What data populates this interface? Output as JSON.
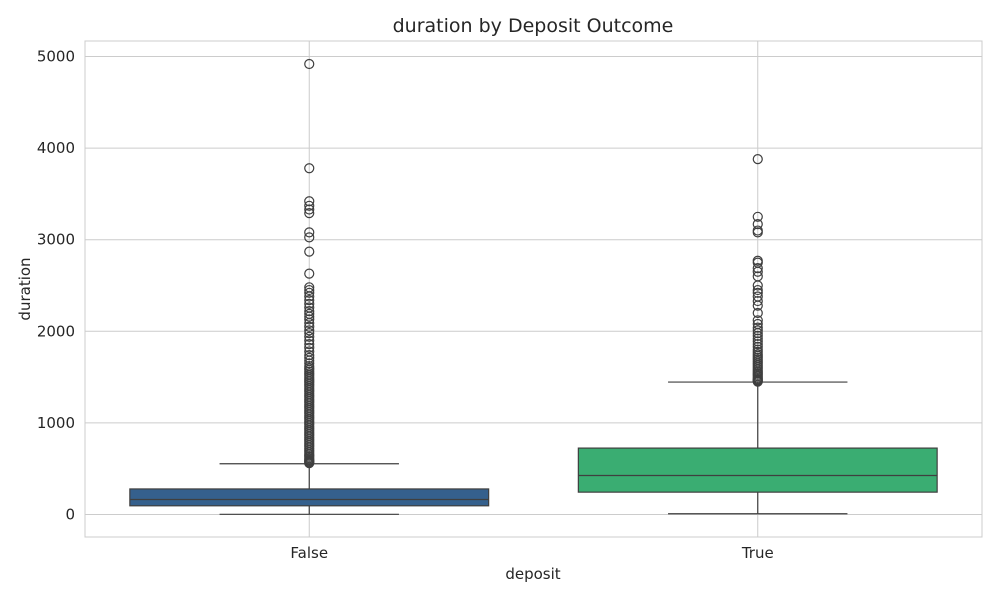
{
  "chart_data": {
    "type": "boxplot",
    "title": "duration by Deposit Outcome",
    "xlabel": "deposit",
    "ylabel": "duration",
    "categories": [
      "False",
      "True"
    ],
    "ylim": [
      -250,
      5160
    ],
    "yticks": [
      0,
      1000,
      2000,
      3000,
      4000,
      5000
    ],
    "grid": true,
    "boxes": [
      {
        "category": "False",
        "color": "#35608d",
        "whisker_low": 2,
        "q1": 95,
        "median": 164,
        "q3": 279,
        "whisker_high": 554,
        "outliers": [
          560,
          570,
          580,
          590,
          600,
          615,
          630,
          645,
          660,
          680,
          700,
          720,
          740,
          760,
          780,
          800,
          820,
          840,
          860,
          880,
          900,
          920,
          940,
          960,
          980,
          1000,
          1020,
          1040,
          1060,
          1080,
          1100,
          1120,
          1140,
          1160,
          1180,
          1200,
          1220,
          1240,
          1260,
          1280,
          1300,
          1320,
          1340,
          1360,
          1380,
          1400,
          1420,
          1440,
          1460,
          1480,
          1500,
          1520,
          1540,
          1560,
          1580,
          1600,
          1620,
          1650,
          1680,
          1710,
          1740,
          1780,
          1820,
          1860,
          1900,
          1940,
          1980,
          2010,
          2050,
          2090,
          2130,
          2160,
          2190,
          2220,
          2260,
          2300,
          2340,
          2380,
          2420,
          2450,
          2480,
          2630,
          2870,
          3025,
          3080,
          3290,
          3330,
          3370,
          3420,
          3780,
          4918
        ]
      },
      {
        "category": "True",
        "color": "#3aad72",
        "whisker_low": 8,
        "q1": 244,
        "median": 426,
        "q3": 725,
        "whisker_high": 1446,
        "outliers": [
          1450,
          1460,
          1470,
          1480,
          1495,
          1510,
          1525,
          1540,
          1555,
          1570,
          1590,
          1610,
          1630,
          1650,
          1670,
          1690,
          1710,
          1730,
          1750,
          1775,
          1800,
          1830,
          1860,
          1890,
          1920,
          1950,
          1980,
          2010,
          2040,
          2080,
          2120,
          2200,
          2280,
          2330,
          2380,
          2420,
          2450,
          2500,
          2600,
          2650,
          2690,
          2750,
          2770,
          3080,
          3100,
          3170,
          3250,
          3880
        ]
      }
    ]
  }
}
